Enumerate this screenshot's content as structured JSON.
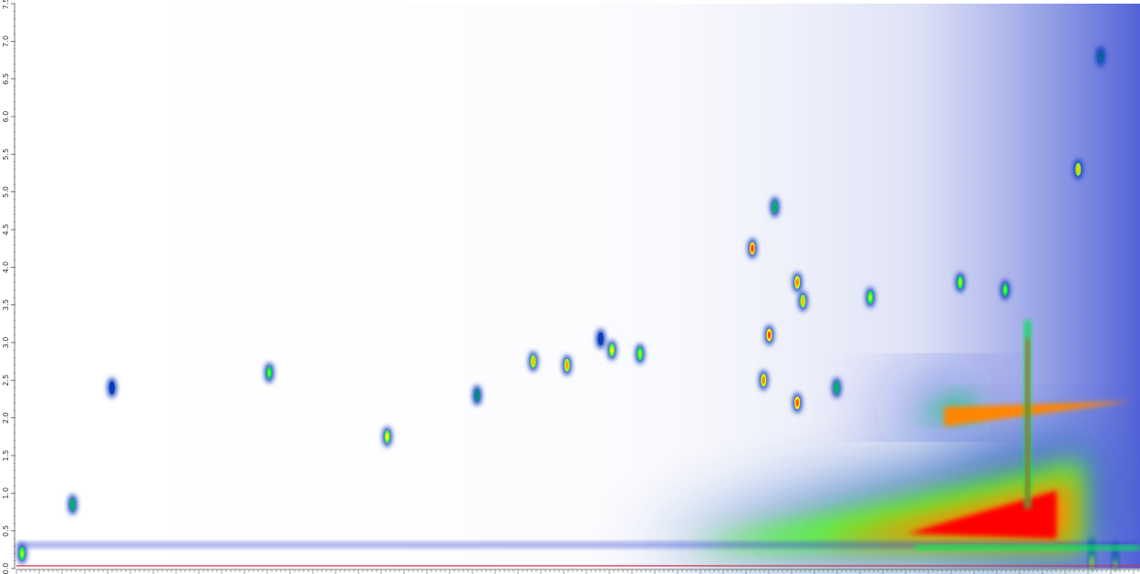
{
  "chart_data": {
    "type": "heatmap",
    "title": "",
    "xlabel": "",
    "ylabel": "",
    "y_ticks": [
      "0.0",
      "0.5",
      "1.0",
      "1.5",
      "2.0",
      "2.5",
      "3.0",
      "3.5",
      "4.0",
      "4.5",
      "5.0",
      "5.5",
      "6.0",
      "6.5",
      "7.0",
      "7.5"
    ],
    "ylim": [
      0.0,
      7.5
    ],
    "x_tick_labels": [],
    "colorscale": [
      "#ffffff",
      "#0a1fcf",
      "#00ff40",
      "#ffff00",
      "#ff6000",
      "#ff0000"
    ],
    "intensity_scale": [
      0.0,
      0.35,
      0.6,
      0.75,
      0.88,
      1.0
    ],
    "grid": false,
    "legend": "none",
    "baseline_color": "#d0304a",
    "features": [
      {
        "kind": "band",
        "from_x_frac": 0.55,
        "to_x_frac": 0.95,
        "y_start": 0.25,
        "y_end": 1.35,
        "peak_intensity": 1.0
      },
      {
        "kind": "band",
        "from_x_frac": 0.75,
        "to_x_frac": 0.85,
        "y_start": 2.0,
        "y_end": 2.2,
        "peak_intensity": 0.85
      },
      {
        "kind": "streak",
        "x_frac": 0.9,
        "y_from": 0.8,
        "y_to": 3.3,
        "intensity": 0.95
      },
      {
        "kind": "streak",
        "x_frac": 0.957,
        "y_from": 0.0,
        "y_to": 0.4,
        "intensity": 0.75
      },
      {
        "kind": "streak",
        "x_frac": 0.978,
        "y_from": 0.0,
        "y_to": 0.35,
        "intensity": 0.7
      }
    ],
    "peaks": [
      {
        "x_frac": 0.225,
        "y": 2.6,
        "intensity": 0.65
      },
      {
        "x_frac": 0.33,
        "y": 1.75,
        "intensity": 0.75
      },
      {
        "x_frac": 0.05,
        "y": 0.85,
        "intensity": 0.6
      },
      {
        "x_frac": 0.085,
        "y": 2.4,
        "intensity": 0.45
      },
      {
        "x_frac": 0.52,
        "y": 3.05,
        "intensity": 0.45
      },
      {
        "x_frac": 0.46,
        "y": 2.75,
        "intensity": 0.8
      },
      {
        "x_frac": 0.49,
        "y": 2.7,
        "intensity": 0.82
      },
      {
        "x_frac": 0.53,
        "y": 2.9,
        "intensity": 0.75
      },
      {
        "x_frac": 0.555,
        "y": 2.85,
        "intensity": 0.7
      },
      {
        "x_frac": 0.655,
        "y": 4.25,
        "intensity": 0.92
      },
      {
        "x_frac": 0.675,
        "y": 4.8,
        "intensity": 0.6
      },
      {
        "x_frac": 0.67,
        "y": 3.1,
        "intensity": 0.9
      },
      {
        "x_frac": 0.665,
        "y": 2.5,
        "intensity": 0.85
      },
      {
        "x_frac": 0.695,
        "y": 2.2,
        "intensity": 0.9
      },
      {
        "x_frac": 0.695,
        "y": 3.8,
        "intensity": 0.85
      },
      {
        "x_frac": 0.7,
        "y": 3.55,
        "intensity": 0.8
      },
      {
        "x_frac": 0.76,
        "y": 3.6,
        "intensity": 0.7
      },
      {
        "x_frac": 0.945,
        "y": 5.3,
        "intensity": 0.8
      },
      {
        "x_frac": 0.84,
        "y": 3.8,
        "intensity": 0.7
      },
      {
        "x_frac": 0.88,
        "y": 3.7,
        "intensity": 0.65
      },
      {
        "x_frac": 0.965,
        "y": 6.8,
        "intensity": 0.5
      },
      {
        "x_frac": 0.73,
        "y": 2.4,
        "intensity": 0.6
      },
      {
        "x_frac": 0.41,
        "y": 2.3,
        "intensity": 0.55
      },
      {
        "x_frac": 0.005,
        "y": 0.2,
        "intensity": 0.7
      }
    ]
  }
}
